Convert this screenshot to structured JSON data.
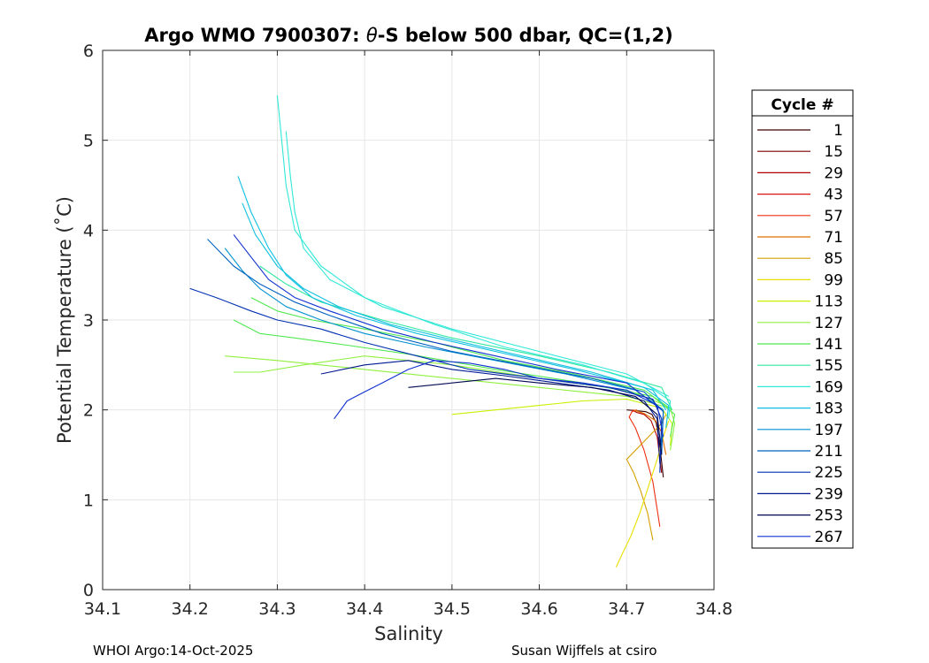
{
  "chart_data": {
    "type": "line",
    "title_prefix": "Argo WMO 7900307: ",
    "title_theta": "θ",
    "title_suffix": "-S below 500 dbar,  QC=(1,2)",
    "xlabel": "Salinity",
    "ylabel": "Potential Temperature (˚C)",
    "xlim": [
      34.1,
      34.8
    ],
    "ylim": [
      0,
      6
    ],
    "xticks": [
      34.1,
      34.2,
      34.3,
      34.4,
      34.5,
      34.6,
      34.7,
      34.8
    ],
    "xtick_labels": [
      "34.1",
      "34.2",
      "34.3",
      "34.4",
      "34.5",
      "34.6",
      "34.7",
      "34.8"
    ],
    "yticks": [
      0,
      1,
      2,
      3,
      4,
      5,
      6
    ],
    "ytick_labels": [
      "0",
      "1",
      "2",
      "3",
      "4",
      "5",
      "6"
    ],
    "grid": true,
    "legend": {
      "title": "Cycle #",
      "placement": "right",
      "entries": [
        {
          "label": "1",
          "color": "#3a0000"
        },
        {
          "label": "15",
          "color": "#7a0000"
        },
        {
          "label": "29",
          "color": "#b00000"
        },
        {
          "label": "43",
          "color": "#dd1010"
        },
        {
          "label": "57",
          "color": "#ee3010"
        },
        {
          "label": "71",
          "color": "#e07000"
        },
        {
          "label": "85",
          "color": "#d4a000"
        },
        {
          "label": "99",
          "color": "#e8e000"
        },
        {
          "label": "113",
          "color": "#c8f000"
        },
        {
          "label": "127",
          "color": "#90f040"
        },
        {
          "label": "141",
          "color": "#50e850"
        },
        {
          "label": "155",
          "color": "#30e8a0"
        },
        {
          "label": "169",
          "color": "#30e8d8"
        },
        {
          "label": "183",
          "color": "#10c0e0"
        },
        {
          "label": "197",
          "color": "#0090d0"
        },
        {
          "label": "211",
          "color": "#0060c0"
        },
        {
          "label": "225",
          "color": "#0030b0"
        },
        {
          "label": "239",
          "color": "#001890"
        },
        {
          "label": "253",
          "color": "#000850"
        },
        {
          "label": "267",
          "color": "#1030d0"
        }
      ]
    },
    "series": [
      {
        "cycle": "1",
        "color": "#3a0000",
        "x": [
          34.742,
          34.738,
          34.734,
          34.729,
          34.722,
          34.712,
          34.7
        ],
        "y": [
          1.25,
          1.6,
          1.85,
          1.95,
          1.98,
          1.99,
          2.0
        ]
      },
      {
        "cycle": "29",
        "color": "#b00000",
        "x": [
          34.74,
          34.735,
          34.728,
          34.72,
          34.712,
          34.706
        ],
        "y": [
          1.3,
          1.7,
          1.88,
          1.95,
          1.97,
          2.0
        ]
      },
      {
        "cycle": "57",
        "color": "#ee3010",
        "x": [
          34.738,
          34.73,
          34.72,
          34.71,
          34.703,
          34.706,
          34.712
        ],
        "y": [
          0.7,
          1.2,
          1.55,
          1.8,
          1.92,
          1.98,
          2.0
        ]
      },
      {
        "cycle": "71",
        "color": "#e07000",
        "x": [
          34.745,
          34.74,
          34.733,
          34.72,
          34.708
        ],
        "y": [
          1.5,
          1.75,
          1.88,
          1.96,
          2.0
        ]
      },
      {
        "cycle": "85",
        "color": "#d4a000",
        "x": [
          34.73,
          34.724,
          34.716,
          34.708,
          34.7,
          34.74,
          34.745
        ],
        "y": [
          0.55,
          0.85,
          1.1,
          1.3,
          1.45,
          1.85,
          1.95
        ]
      },
      {
        "cycle": "99",
        "color": "#e8e000",
        "x": [
          34.688,
          34.695,
          34.705,
          34.715,
          34.725,
          34.735,
          34.742,
          34.748
        ],
        "y": [
          0.25,
          0.4,
          0.6,
          0.85,
          1.15,
          1.45,
          1.7,
          1.88
        ]
      },
      {
        "cycle": "113",
        "color": "#c8f000",
        "x": [
          34.5,
          34.55,
          34.6,
          34.65,
          34.7,
          34.74,
          34.752,
          34.75
        ],
        "y": [
          1.95,
          2.0,
          2.05,
          2.1,
          2.12,
          2.02,
          1.85,
          1.6
        ]
      },
      {
        "cycle": "127",
        "color": "#90f040",
        "x": [
          34.24,
          34.3,
          34.4,
          34.5,
          34.6,
          34.7,
          34.75,
          34.755,
          34.75
        ],
        "y": [
          2.6,
          2.55,
          2.45,
          2.35,
          2.25,
          2.15,
          2.02,
          1.85,
          1.55
        ]
      },
      {
        "cycle": "127b",
        "color": "#90f040",
        "x": [
          34.25,
          34.28,
          34.33,
          34.4,
          34.5,
          34.6,
          34.7,
          34.745
        ],
        "y": [
          2.42,
          2.42,
          2.5,
          2.6,
          2.5,
          2.35,
          2.22,
          2.05
        ]
      },
      {
        "cycle": "141",
        "color": "#50e850",
        "x": [
          34.25,
          34.28,
          34.32,
          34.38,
          34.45,
          34.55,
          34.65,
          34.73,
          34.755,
          34.75
        ],
        "y": [
          3.0,
          2.85,
          2.8,
          2.72,
          2.62,
          2.45,
          2.3,
          2.15,
          1.95,
          1.7
        ]
      },
      {
        "cycle": "141b",
        "color": "#50e850",
        "x": [
          34.27,
          34.3,
          34.34,
          34.4,
          34.48,
          34.56,
          34.64,
          34.72,
          34.752
        ],
        "y": [
          3.25,
          3.1,
          3.0,
          2.9,
          2.75,
          2.55,
          2.4,
          2.22,
          2.0
        ]
      },
      {
        "cycle": "155",
        "color": "#30e8a0",
        "x": [
          34.28,
          34.31,
          34.35,
          34.42,
          34.5,
          34.6,
          34.68,
          34.74,
          34.752
        ],
        "y": [
          3.6,
          3.4,
          3.2,
          3.0,
          2.8,
          2.6,
          2.42,
          2.25,
          2.0
        ]
      },
      {
        "cycle": "169",
        "color": "#30e8d8",
        "x": [
          34.3,
          34.305,
          34.31,
          34.32,
          34.35,
          34.4,
          34.48,
          34.56,
          34.65,
          34.72,
          34.75,
          34.748
        ],
        "y": [
          5.5,
          5.0,
          4.5,
          4.0,
          3.6,
          3.25,
          2.95,
          2.7,
          2.5,
          2.3,
          2.1,
          1.9
        ]
      },
      {
        "cycle": "169b",
        "color": "#30e8d8",
        "x": [
          34.31,
          34.315,
          34.32,
          34.33,
          34.36,
          34.42,
          34.5,
          34.6,
          34.7,
          34.748
        ],
        "y": [
          5.1,
          4.6,
          4.2,
          3.8,
          3.45,
          3.15,
          2.9,
          2.65,
          2.4,
          2.15
        ]
      },
      {
        "cycle": "183",
        "color": "#10c0e0",
        "x": [
          34.255,
          34.27,
          34.29,
          34.31,
          34.34,
          34.39,
          34.46,
          34.55,
          34.64,
          34.72,
          34.748,
          34.745
        ],
        "y": [
          4.6,
          4.2,
          3.8,
          3.5,
          3.25,
          3.05,
          2.85,
          2.65,
          2.45,
          2.25,
          2.05,
          1.8
        ]
      },
      {
        "cycle": "183b",
        "color": "#10c0e0",
        "x": [
          34.26,
          34.275,
          34.3,
          34.33,
          34.37,
          34.43,
          34.5,
          34.58,
          34.66,
          34.73,
          34.745
        ],
        "y": [
          4.3,
          3.95,
          3.6,
          3.35,
          3.15,
          2.95,
          2.78,
          2.6,
          2.42,
          2.22,
          2.0
        ]
      },
      {
        "cycle": "197",
        "color": "#0090d0",
        "x": [
          34.24,
          34.26,
          34.28,
          34.31,
          34.35,
          34.4,
          34.47,
          34.55,
          34.63,
          34.71,
          34.742,
          34.74
        ],
        "y": [
          3.8,
          3.55,
          3.35,
          3.15,
          3.0,
          2.85,
          2.7,
          2.55,
          2.4,
          2.22,
          2.0,
          1.6
        ]
      },
      {
        "cycle": "211",
        "color": "#0060c0",
        "x": [
          34.22,
          34.25,
          34.28,
          34.32,
          34.36,
          34.42,
          34.5,
          34.58,
          34.66,
          34.72,
          34.742,
          34.74
        ],
        "y": [
          3.9,
          3.6,
          3.4,
          3.2,
          3.05,
          2.85,
          2.65,
          2.5,
          2.35,
          2.2,
          1.98,
          1.5
        ]
      },
      {
        "cycle": "225",
        "color": "#0030b0",
        "x": [
          34.2,
          34.23,
          34.27,
          34.3,
          34.35,
          34.4,
          34.46,
          34.52,
          34.6,
          34.68,
          34.73,
          34.74,
          34.738
        ],
        "y": [
          3.35,
          3.25,
          3.1,
          3.0,
          2.9,
          2.75,
          2.6,
          2.45,
          2.35,
          2.25,
          2.12,
          1.9,
          1.3
        ]
      },
      {
        "cycle": "239",
        "color": "#001890",
        "x": [
          34.35,
          34.4,
          34.45,
          34.5,
          34.56,
          34.62,
          34.68,
          34.72,
          34.735,
          34.738
        ],
        "y": [
          2.4,
          2.5,
          2.55,
          2.45,
          2.38,
          2.3,
          2.22,
          2.1,
          1.9,
          1.4
        ]
      },
      {
        "cycle": "253",
        "color": "#000850",
        "x": [
          34.45,
          34.5,
          34.55,
          34.6,
          34.66,
          34.71,
          34.735,
          34.74
        ],
        "y": [
          2.25,
          2.3,
          2.35,
          2.3,
          2.25,
          2.15,
          1.95,
          1.5
        ]
      },
      {
        "cycle": "267",
        "color": "#1030d0",
        "x": [
          34.365,
          34.38,
          34.4,
          34.42,
          34.45,
          34.48,
          34.52,
          34.56,
          34.6,
          34.65,
          34.7,
          34.735,
          34.742
        ],
        "y": [
          1.9,
          2.1,
          2.2,
          2.3,
          2.45,
          2.55,
          2.52,
          2.45,
          2.35,
          2.3,
          2.22,
          2.05,
          1.7
        ]
      },
      {
        "cycle": "267b",
        "color": "#1030d0",
        "x": [
          34.25,
          34.27,
          34.29,
          34.32,
          34.36,
          34.42,
          34.48,
          34.55,
          34.62,
          34.7,
          34.74
        ],
        "y": [
          3.95,
          3.7,
          3.45,
          3.25,
          3.1,
          2.9,
          2.75,
          2.6,
          2.45,
          2.3,
          2.0
        ]
      }
    ]
  },
  "footer": {
    "left": "WHOI Argo:14-Oct-2025",
    "right": "Susan Wijffels at csiro"
  }
}
